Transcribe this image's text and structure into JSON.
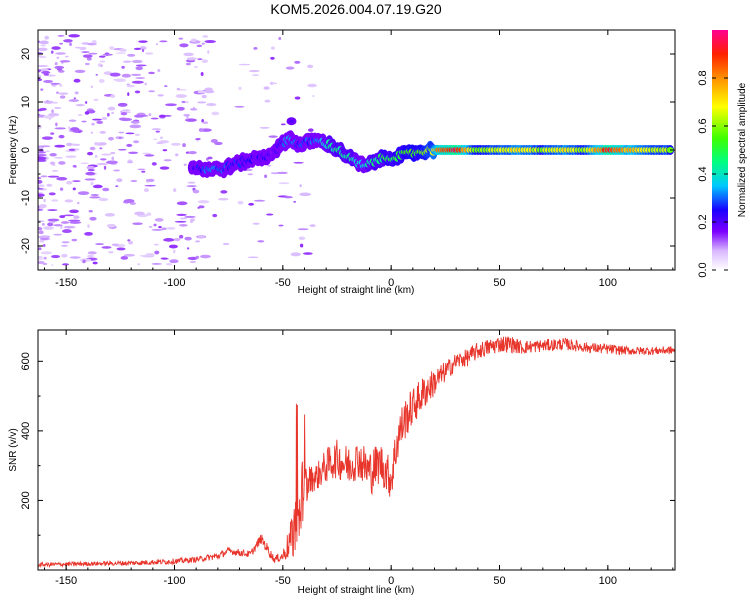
{
  "figure": {
    "title": "KOM5.2026.004.07.19.G20"
  },
  "chart_data": [
    {
      "type": "heatmap",
      "title": "KOM5.2026.004.07.19.G20",
      "xlabel": "Height of straight line (km)",
      "ylabel": "Frequency (Hz)",
      "xlim": [
        -163,
        131
      ],
      "ylim": [
        -25,
        25
      ],
      "xticks": [
        -150,
        -100,
        -50,
        0,
        50,
        100
      ],
      "yticks": [
        -20,
        -10,
        0,
        10,
        20
      ],
      "colorbar": {
        "label": "Normalized spectral amplitude",
        "range": [
          0,
          1
        ],
        "ticks": [
          0.0,
          0.2,
          0.4,
          0.6,
          0.8
        ]
      },
      "ridge": [
        {
          "x": -92,
          "freq": -3.5,
          "amp": 0.18
        },
        {
          "x": -85,
          "freq": -4.0,
          "amp": 0.28
        },
        {
          "x": -78,
          "freq": -4.0,
          "amp": 0.3
        },
        {
          "x": -72,
          "freq": -3.0,
          "amp": 0.25
        },
        {
          "x": -65,
          "freq": -2.0,
          "amp": 0.22
        },
        {
          "x": -58,
          "freq": -1.5,
          "amp": 0.2
        },
        {
          "x": -52,
          "freq": 0.5,
          "amp": 0.18
        },
        {
          "x": -47,
          "freq": 2.5,
          "amp": 0.35
        },
        {
          "x": -42,
          "freq": 1.0,
          "amp": 0.25
        },
        {
          "x": -36,
          "freq": 2.0,
          "amp": 0.3
        },
        {
          "x": -30,
          "freq": 1.5,
          "amp": 0.38
        },
        {
          "x": -24,
          "freq": 0.0,
          "amp": 0.45
        },
        {
          "x": -18,
          "freq": -2.0,
          "amp": 0.42
        },
        {
          "x": -12,
          "freq": -3.5,
          "amp": 0.38
        },
        {
          "x": -6,
          "freq": -2.0,
          "amp": 0.45
        },
        {
          "x": 0,
          "freq": -1.5,
          "amp": 0.5
        },
        {
          "x": 6,
          "freq": -1.0,
          "amp": 0.52
        },
        {
          "x": 12,
          "freq": -0.5,
          "amp": 0.55
        },
        {
          "x": 18,
          "freq": 0.0,
          "amp": 0.6
        },
        {
          "x": 22,
          "freq": 0.0,
          "amp": 0.8
        },
        {
          "x": 30,
          "freq": 0.0,
          "amp": 0.98
        },
        {
          "x": 40,
          "freq": 0.0,
          "amp": 0.55
        },
        {
          "x": 50,
          "freq": 0.0,
          "amp": 0.65
        },
        {
          "x": 60,
          "freq": 0.0,
          "amp": 0.72
        },
        {
          "x": 70,
          "freq": 0.0,
          "amp": 0.6
        },
        {
          "x": 80,
          "freq": 0.0,
          "amp": 0.7
        },
        {
          "x": 90,
          "freq": 0.0,
          "amp": 0.62
        },
        {
          "x": 100,
          "freq": 0.0,
          "amp": 0.92
        },
        {
          "x": 110,
          "freq": 0.0,
          "amp": 0.75
        },
        {
          "x": 120,
          "freq": 0.0,
          "amp": 0.65
        },
        {
          "x": 130,
          "freq": 0.0,
          "amp": 0.6
        }
      ]
    },
    {
      "type": "line",
      "xlabel": "Height of straight line (km)",
      "ylabel": "SNR (v/v)",
      "xlim": [
        -163,
        131
      ],
      "ylim": [
        0,
        690
      ],
      "xticks": [
        -150,
        -100,
        -50,
        0,
        50,
        100
      ],
      "yticks": [
        200,
        400,
        600
      ],
      "series": [
        {
          "name": "SNR",
          "color": "#e8352b",
          "envelope": {
            "x": [
              -163,
              -140,
              -120,
              -100,
              -90,
              -80,
              -75,
              -70,
              -65,
              -60,
              -57,
              -54,
              -50,
              -46,
              -44,
              -42,
              -40,
              -38,
              -34,
              -30,
              -25,
              -20,
              -15,
              -10,
              -5,
              0,
              3,
              6,
              10,
              15,
              20,
              25,
              30,
              35,
              40,
              45,
              50,
              55,
              60,
              70,
              80,
              90,
              100,
              110,
              120,
              131
            ],
            "mean": [
              15,
              18,
              20,
              25,
              30,
              40,
              55,
              50,
              45,
              90,
              60,
              30,
              40,
              90,
              150,
              200,
              230,
              260,
              270,
              300,
              320,
              300,
              320,
              280,
              310,
              260,
              380,
              430,
              470,
              510,
              540,
              570,
              600,
              610,
              630,
              640,
              650,
              650,
              640,
              645,
              650,
              640,
              635,
              630,
              630,
              632
            ],
            "noise": [
              6,
              6,
              7,
              8,
              8,
              10,
              10,
              10,
              10,
              15,
              15,
              10,
              15,
              60,
              150,
              120,
              100,
              40,
              40,
              50,
              55,
              60,
              55,
              70,
              60,
              60,
              70,
              60,
              55,
              50,
              40,
              30,
              25,
              25,
              25,
              25,
              25,
              25,
              20,
              18,
              18,
              15,
              15,
              12,
              12,
              12
            ]
          }
        }
      ]
    }
  ]
}
